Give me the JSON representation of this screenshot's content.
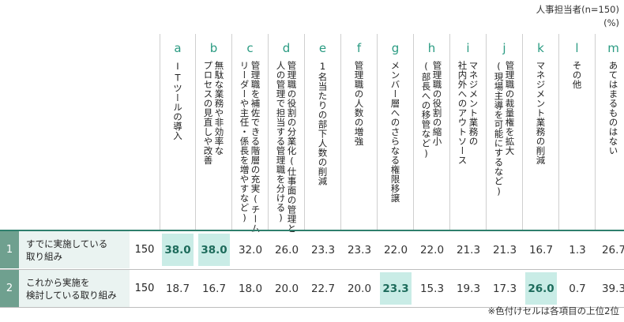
{
  "respondent_note": "人事担当者(n=150)",
  "unit_note": "(%)",
  "footnote": "※色付けセルは各項目の上位2位",
  "highlight_color": "#c9ece6",
  "columns": [
    {
      "letter": "a",
      "label": "ITツールの導入"
    },
    {
      "letter": "b",
      "label": "無駄な業務や非効率な\nプロセスの見直しや改善"
    },
    {
      "letter": "c",
      "label": "管理職を補佐できる階層の充実(チーム\nリーダーや主任・係長を増やすなど)"
    },
    {
      "letter": "d",
      "label": "管理職の役割の分業化(仕事面の管理と\n人の管理で担当する管理職を分ける)"
    },
    {
      "letter": "e",
      "label": "1名当たりの部下人数の削減"
    },
    {
      "letter": "f",
      "label": "管理職の人数の増強"
    },
    {
      "letter": "g",
      "label": "メンバー層へのさらなる権限移譲"
    },
    {
      "letter": "h",
      "label": "管理職の役割の縮小\n(部長への移管など)"
    },
    {
      "letter": "i",
      "label": "マネジメント業務の\n社内外へのアウトソース"
    },
    {
      "letter": "j",
      "label": "管理職の裁量権を拡大\n(現場主導を可能にするなど)"
    },
    {
      "letter": "k",
      "label": "マネジメント業務の削減"
    },
    {
      "letter": "l",
      "label": "その他"
    },
    {
      "letter": "m",
      "label": "あてはまるものはない"
    }
  ],
  "rows": [
    {
      "num": "1",
      "label": "すでに実施している\n取り組み",
      "n": "150",
      "values": [
        "38.0",
        "38.0",
        "32.0",
        "26.0",
        "23.3",
        "23.3",
        "22.0",
        "22.0",
        "21.3",
        "21.3",
        "16.7",
        "1.3",
        "26.7"
      ],
      "highlight": [
        true,
        true,
        false,
        false,
        false,
        false,
        false,
        false,
        false,
        false,
        false,
        false,
        false
      ]
    },
    {
      "num": "2",
      "label": "これから実施を\n検討している取り組み",
      "n": "150",
      "values": [
        "18.7",
        "16.7",
        "18.0",
        "20.0",
        "22.7",
        "20.0",
        "23.3",
        "15.3",
        "19.3",
        "17.3",
        "26.0",
        "0.7",
        "39.3"
      ],
      "highlight": [
        false,
        false,
        false,
        false,
        false,
        false,
        true,
        false,
        false,
        false,
        true,
        false,
        false
      ]
    }
  ]
}
